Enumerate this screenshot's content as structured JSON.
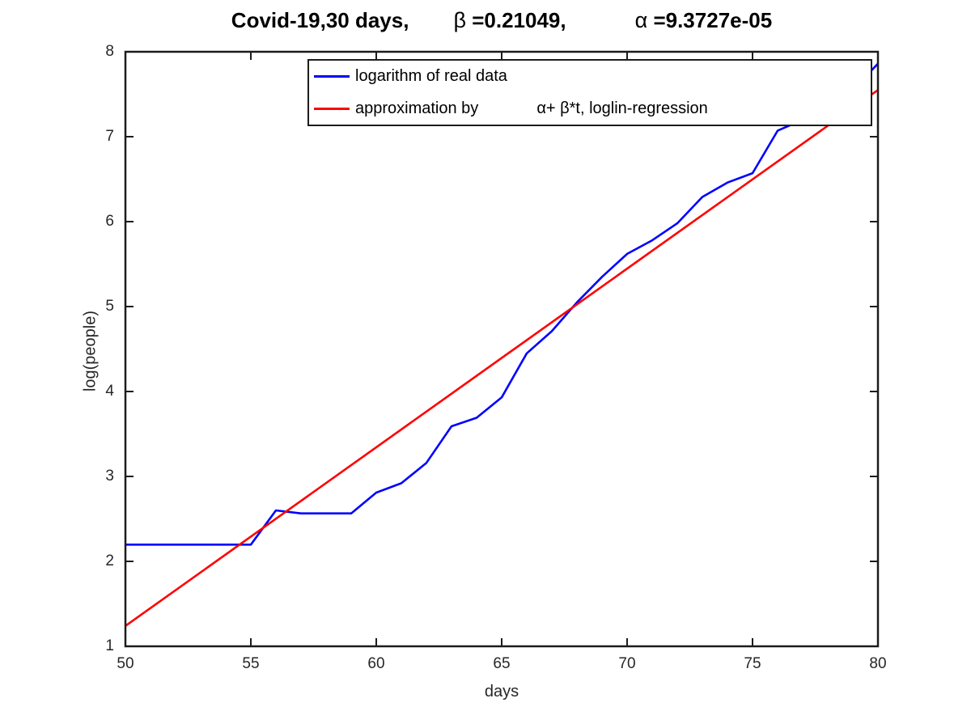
{
  "figure": {
    "title": {
      "segment1": "Covid-19,30 days,",
      "beta_symbol": "β",
      "beta_value": " =0.21049,",
      "alpha_symbol": "α",
      "alpha_value": " =9.3727e-05"
    },
    "xlabel": "days",
    "ylabel": "log(people)"
  },
  "legend": {
    "item1": {
      "label": "logarithm of real data",
      "color": "#0000ff"
    },
    "item2": {
      "label_part1": "approximation by",
      "label_part2": "α+ β*t, loglin-regression",
      "color": "#ff0000"
    }
  },
  "chart_data": {
    "type": "line",
    "title": "Covid-19,30 days, β =0.21049, α =9.3727e-05",
    "xlabel": "days",
    "ylabel": "log(people)",
    "xlim": [
      50,
      80
    ],
    "ylim": [
      1,
      8
    ],
    "xticks": [
      50,
      55,
      60,
      65,
      70,
      75,
      80
    ],
    "yticks": [
      1,
      2,
      3,
      4,
      5,
      6,
      7,
      8
    ],
    "grid": false,
    "legend_position": "top-inside",
    "params": {
      "beta_display": "0.21049",
      "alpha_display": "9.3727e-05",
      "beta": 0.21049,
      "alpha": 9.3727e-05
    },
    "series": [
      {
        "name": "logarithm of real data",
        "id": "real-data-line",
        "color": "#0000ff",
        "line_width": 2.6,
        "x": [
          50,
          51,
          52,
          53,
          54,
          55,
          56,
          57,
          58,
          59,
          60,
          61,
          62,
          63,
          64,
          65,
          66,
          67,
          68,
          69,
          70,
          71,
          72,
          73,
          74,
          75,
          76,
          77,
          78,
          79,
          80
        ],
        "y": [
          2.197,
          2.197,
          2.197,
          2.197,
          2.197,
          2.197,
          2.6,
          2.565,
          2.565,
          2.565,
          2.81,
          2.92,
          3.16,
          3.59,
          3.69,
          3.93,
          4.45,
          4.71,
          5.05,
          5.35,
          5.62,
          5.78,
          5.98,
          6.29,
          6.46,
          6.57,
          7.07,
          7.2,
          7.38,
          7.55,
          7.86
        ]
      },
      {
        "name": "approximation by α+ β*t, loglin-regression",
        "id": "regression-line",
        "color": "#ff0000",
        "line_width": 2.6,
        "x": [
          50,
          80
        ],
        "y": [
          1.24,
          7.55
        ]
      }
    ]
  }
}
